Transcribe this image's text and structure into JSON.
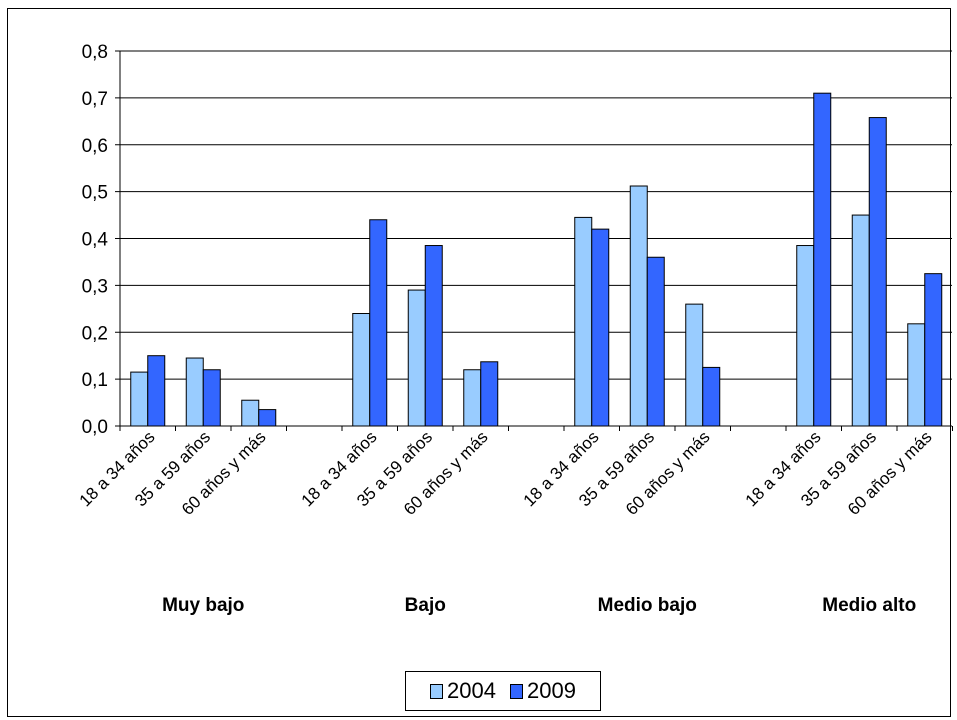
{
  "chart_data": {
    "type": "bar",
    "title": "",
    "xlabel": "",
    "ylabel": "",
    "ylim": [
      0,
      0.8
    ],
    "yticks": [
      "0,0",
      "0,1",
      "0,2",
      "0,3",
      "0,4",
      "0,5",
      "0,6",
      "0,7",
      "0,8"
    ],
    "grid": true,
    "legend_position": "bottom",
    "groups": [
      {
        "label": "Muy bajo",
        "categories": [
          "18 a 34 años",
          "35 a 59 años",
          "60 años y más"
        ]
      },
      {
        "label": "Bajo",
        "categories": [
          "18 a 34 años",
          "35 a 59 años",
          "60 años y más"
        ]
      },
      {
        "label": "Medio bajo",
        "categories": [
          "18 a 34 años",
          "35 a 59 años",
          "60 años y más"
        ]
      },
      {
        "label": "Medio alto",
        "categories": [
          "18 a 34 años",
          "35 a 59 años",
          "60 años y más"
        ]
      }
    ],
    "series": [
      {
        "name": "2004",
        "color": "#99ccff",
        "values": [
          0.115,
          0.145,
          0.055,
          0.24,
          0.29,
          0.12,
          0.445,
          0.512,
          0.26,
          0.385,
          0.45,
          0.218
        ]
      },
      {
        "name": "2009",
        "color": "#3366ff",
        "values": [
          0.15,
          0.12,
          0.035,
          0.44,
          0.385,
          0.137,
          0.42,
          0.36,
          0.125,
          0.71,
          0.658,
          0.325
        ]
      }
    ]
  }
}
